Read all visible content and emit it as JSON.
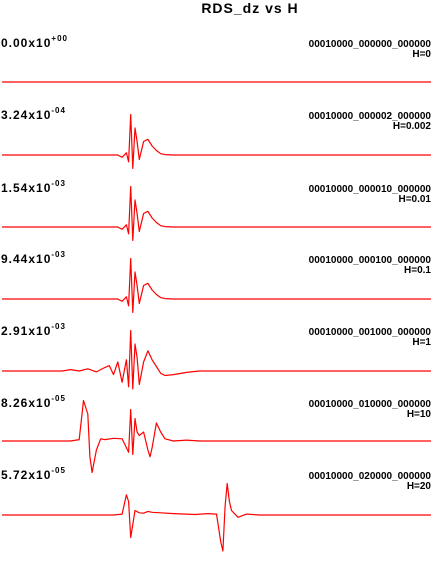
{
  "chart_data": {
    "type": "line",
    "title": "RDS_dz vs H",
    "xlabel": "",
    "ylabel": "",
    "grid": false,
    "line_color": "#ff0000",
    "panels": [
      {
        "amplitude_mantissa": "0.00x10",
        "amplitude_exponent": "+00",
        "run_id": "00010000_000000_000000",
        "h_label": "H=0",
        "trace": [
          [
            0,
            0
          ],
          [
            1,
            0
          ]
        ]
      },
      {
        "amplitude_mantissa": "3.24x10",
        "amplitude_exponent": "-04",
        "run_id": "00010000_000002_000000",
        "h_label": "H=0.002",
        "trace": [
          [
            0,
            0
          ],
          [
            0.27,
            0
          ],
          [
            0.28,
            -0.05
          ],
          [
            0.29,
            0.05
          ],
          [
            0.295,
            -0.15
          ],
          [
            0.3,
            0.9
          ],
          [
            0.305,
            -0.3
          ],
          [
            0.31,
            0.6
          ],
          [
            0.315,
            0.3
          ],
          [
            0.32,
            -0.1
          ],
          [
            0.33,
            0.3
          ],
          [
            0.34,
            0.35
          ],
          [
            0.35,
            0.2
          ],
          [
            0.36,
            0.1
          ],
          [
            0.37,
            0.03
          ],
          [
            0.38,
            0.01
          ],
          [
            0.4,
            0
          ],
          [
            1,
            0
          ]
        ]
      },
      {
        "amplitude_mantissa": "1.54x10",
        "amplitude_exponent": "-03",
        "run_id": "00010000_000010_000000",
        "h_label": "H=0.01",
        "trace": [
          [
            0,
            0
          ],
          [
            0.27,
            0
          ],
          [
            0.28,
            -0.05
          ],
          [
            0.29,
            0.05
          ],
          [
            0.295,
            -0.15
          ],
          [
            0.3,
            0.9
          ],
          [
            0.305,
            -0.3
          ],
          [
            0.31,
            0.6
          ],
          [
            0.315,
            0.3
          ],
          [
            0.32,
            -0.1
          ],
          [
            0.33,
            0.3
          ],
          [
            0.34,
            0.35
          ],
          [
            0.35,
            0.2
          ],
          [
            0.36,
            0.1
          ],
          [
            0.37,
            0.03
          ],
          [
            0.38,
            0.01
          ],
          [
            0.4,
            0
          ],
          [
            1,
            0
          ]
        ]
      },
      {
        "amplitude_mantissa": "9.44x10",
        "amplitude_exponent": "-03",
        "run_id": "00010000_000100_000000",
        "h_label": "H=0.1",
        "trace": [
          [
            0,
            0
          ],
          [
            0.27,
            0
          ],
          [
            0.28,
            -0.05
          ],
          [
            0.29,
            0.05
          ],
          [
            0.295,
            -0.15
          ],
          [
            0.3,
            0.9
          ],
          [
            0.305,
            -0.3
          ],
          [
            0.31,
            0.6
          ],
          [
            0.315,
            0.3
          ],
          [
            0.32,
            -0.1
          ],
          [
            0.33,
            0.3
          ],
          [
            0.34,
            0.35
          ],
          [
            0.35,
            0.2
          ],
          [
            0.36,
            0.1
          ],
          [
            0.37,
            0.03
          ],
          [
            0.38,
            0.01
          ],
          [
            0.4,
            0
          ],
          [
            1,
            0
          ]
        ]
      },
      {
        "amplitude_mantissa": "2.91x10",
        "amplitude_exponent": "-03",
        "run_id": "00010000_001000_000000",
        "h_label": "H=1",
        "trace": [
          [
            0,
            0
          ],
          [
            0.14,
            0
          ],
          [
            0.16,
            0.03
          ],
          [
            0.18,
            0
          ],
          [
            0.2,
            0.05
          ],
          [
            0.22,
            -0.02
          ],
          [
            0.24,
            0.08
          ],
          [
            0.25,
            0.12
          ],
          [
            0.26,
            -0.08
          ],
          [
            0.27,
            0.2
          ],
          [
            0.28,
            -0.25
          ],
          [
            0.29,
            0.25
          ],
          [
            0.295,
            -0.35
          ],
          [
            0.3,
            0.9
          ],
          [
            0.305,
            -0.4
          ],
          [
            0.31,
            0.6
          ],
          [
            0.315,
            0.3
          ],
          [
            0.32,
            -0.3
          ],
          [
            0.33,
            0.2
          ],
          [
            0.34,
            0.45
          ],
          [
            0.35,
            0.25
          ],
          [
            0.36,
            0.1
          ],
          [
            0.37,
            -0.05
          ],
          [
            0.38,
            -0.1
          ],
          [
            0.4,
            -0.08
          ],
          [
            0.43,
            -0.03
          ],
          [
            0.46,
            0
          ],
          [
            1,
            0
          ]
        ]
      },
      {
        "amplitude_mantissa": "8.26x10",
        "amplitude_exponent": "-05",
        "run_id": "00010000_010000_000000",
        "h_label": "H=10",
        "trace": [
          [
            0,
            0
          ],
          [
            0.16,
            0
          ],
          [
            0.18,
            0.03
          ],
          [
            0.19,
            0.9
          ],
          [
            0.2,
            0.6
          ],
          [
            0.205,
            -0.35
          ],
          [
            0.21,
            -0.7
          ],
          [
            0.22,
            -0.2
          ],
          [
            0.23,
            0.05
          ],
          [
            0.24,
            0.03
          ],
          [
            0.26,
            0.06
          ],
          [
            0.28,
            0.05
          ],
          [
            0.295,
            -0.25
          ],
          [
            0.3,
            0.7
          ],
          [
            0.305,
            -0.3
          ],
          [
            0.31,
            0.5
          ],
          [
            0.315,
            0.2
          ],
          [
            0.32,
            0.12
          ],
          [
            0.33,
            0.2
          ],
          [
            0.34,
            -0.2
          ],
          [
            0.345,
            -0.35
          ],
          [
            0.35,
            -0.15
          ],
          [
            0.36,
            0.4
          ],
          [
            0.37,
            0.2
          ],
          [
            0.38,
            0.05
          ],
          [
            0.4,
            0
          ],
          [
            0.43,
            0.02
          ],
          [
            0.46,
            0
          ],
          [
            1,
            0
          ]
        ]
      },
      {
        "amplitude_mantissa": "5.72x10",
        "amplitude_exponent": "-05",
        "run_id": "00010000_020000_000000",
        "h_label": "H=20",
        "trace": [
          [
            0,
            0
          ],
          [
            0.26,
            0
          ],
          [
            0.28,
            0.02
          ],
          [
            0.29,
            0.45
          ],
          [
            0.295,
            0.3
          ],
          [
            0.3,
            -0.5
          ],
          [
            0.31,
            0.1
          ],
          [
            0.32,
            0.05
          ],
          [
            0.33,
            0.04
          ],
          [
            0.34,
            0.08
          ],
          [
            0.35,
            0.06
          ],
          [
            0.37,
            0.05
          ],
          [
            0.4,
            0.03
          ],
          [
            0.45,
            0.01
          ],
          [
            0.48,
            0.03
          ],
          [
            0.5,
            0.02
          ],
          [
            0.51,
            -0.6
          ],
          [
            0.515,
            -0.8
          ],
          [
            0.52,
            0.2
          ],
          [
            0.525,
            0.7
          ],
          [
            0.53,
            0.3
          ],
          [
            0.535,
            0.1
          ],
          [
            0.55,
            -0.05
          ],
          [
            0.57,
            0.02
          ],
          [
            0.6,
            0
          ],
          [
            1,
            0
          ]
        ]
      }
    ]
  }
}
